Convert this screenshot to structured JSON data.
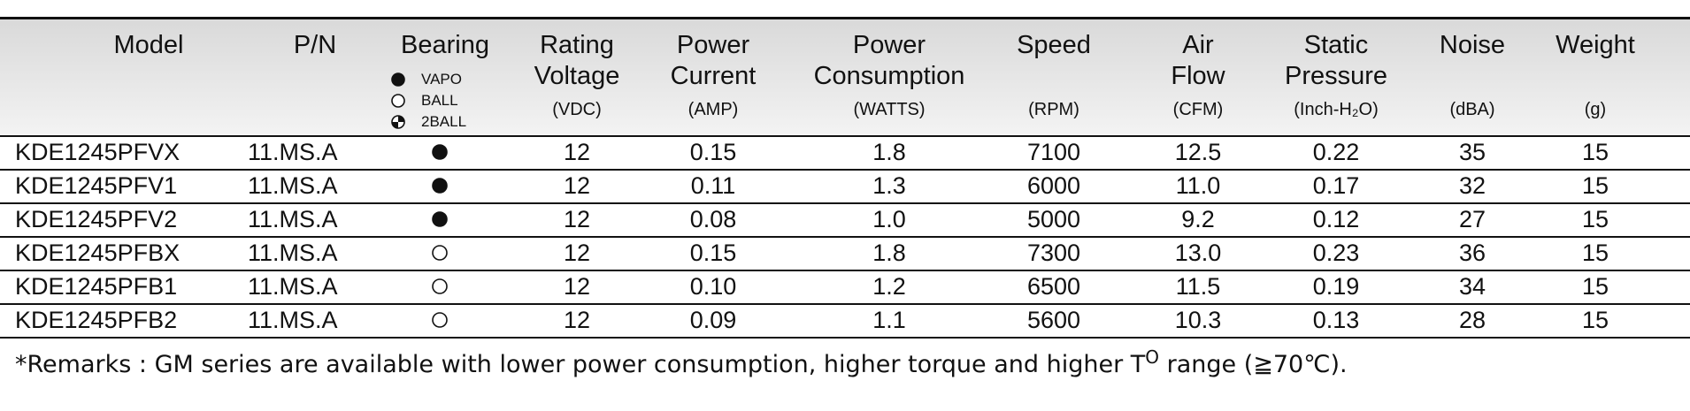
{
  "table": {
    "columns": [
      {
        "title": [
          "Model"
        ]
      },
      {
        "title": [
          "P/N"
        ]
      },
      {
        "title": [
          "Bearing"
        ],
        "legend": [
          {
            "kind": "filled",
            "label": "VAPO"
          },
          {
            "kind": "open",
            "label": "BALL"
          },
          {
            "kind": "half",
            "label": "2BALL"
          }
        ]
      },
      {
        "title": [
          "Rating",
          "Voltage"
        ],
        "unit": "(VDC)"
      },
      {
        "title": [
          "Power",
          "Current"
        ],
        "unit": "(AMP)"
      },
      {
        "title": [
          "Power",
          "Consumption"
        ],
        "unit": "(WATTS)"
      },
      {
        "title": [
          "Speed"
        ],
        "unit": "(RPM)"
      },
      {
        "title": [
          "Air",
          "Flow"
        ],
        "unit": "(CFM)"
      },
      {
        "title": [
          "Static",
          "Pressure"
        ],
        "unit": "(Inch-H₂O)"
      },
      {
        "title": [
          "Noise"
        ],
        "unit": "(dBA)"
      },
      {
        "title": [
          "Weight"
        ],
        "unit": "(g)"
      }
    ],
    "rows": [
      [
        "KDE1245PFVX",
        "11.MS.A",
        "filled",
        "12",
        "0.15",
        "1.8",
        "7100",
        "12.5",
        "0.22",
        "35",
        "15"
      ],
      [
        "KDE1245PFV1",
        "11.MS.A",
        "filled",
        "12",
        "0.11",
        "1.3",
        "6000",
        "11.0",
        "0.17",
        "32",
        "15"
      ],
      [
        "KDE1245PFV2",
        "11.MS.A",
        "filled",
        "12",
        "0.08",
        "1.0",
        "5000",
        "9.2",
        "0.12",
        "27",
        "15"
      ],
      [
        "KDE1245PFBX",
        "11.MS.A",
        "open",
        "12",
        "0.15",
        "1.8",
        "7300",
        "13.0",
        "0.23",
        "36",
        "15"
      ],
      [
        "KDE1245PFB1",
        "11.MS.A",
        "open",
        "12",
        "0.10",
        "1.2",
        "6500",
        "11.5",
        "0.19",
        "34",
        "15"
      ],
      [
        "KDE1245PFB2",
        "11.MS.A",
        "open",
        "12",
        "0.09",
        "1.1",
        "5600",
        "10.3",
        "0.13",
        "28",
        "15"
      ]
    ]
  },
  "remark": [
    "*Remarks : GM series are available with lower power consumption, higher torque and higher T",
    "O",
    " range (≧70℃)."
  ]
}
